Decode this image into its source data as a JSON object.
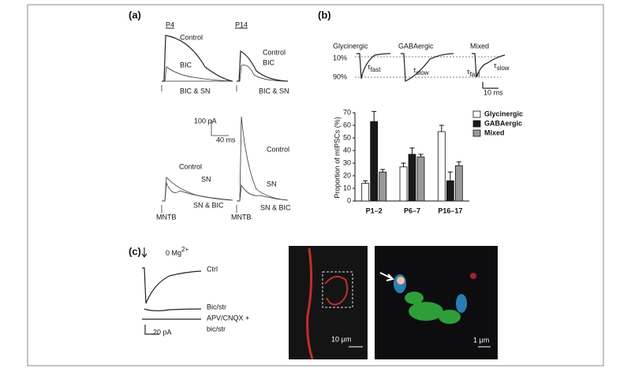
{
  "panel_a": {
    "label": "(a)",
    "p4": "P4",
    "p14": "P14",
    "top_left": [
      "Control",
      "BIC",
      "BIC & SN"
    ],
    "top_right": [
      "Control",
      "BIC",
      "BIC & SN"
    ],
    "scale_y": "100 pA",
    "scale_x": "40 ms",
    "bottom_left": [
      "Control",
      "SN",
      "SN & BIC",
      "MNTB"
    ],
    "bottom_right": [
      "Control",
      "SN",
      "SN & BIC",
      "MNTB"
    ]
  },
  "panel_b": {
    "label": "(b)",
    "types": [
      "Glycinergic",
      "GABAergic",
      "Mixed"
    ],
    "level_10": "10%",
    "level_90": "90%",
    "tau_fast": {
      "symbol": "τ",
      "subscript": "fast"
    },
    "tau_slow": {
      "symbol": "τ",
      "subscript": "slow"
    },
    "tau_fast_mixed": {
      "symbol": "τ",
      "subscript": "fast"
    },
    "tau_slow_mixed": {
      "symbol": "τ",
      "subscript": "slow"
    },
    "scale": "10 ms"
  },
  "panel_c": {
    "label": "(c)",
    "condition": {
      "base": "0 Mg",
      "sup": "2+"
    },
    "traces": [
      "Ctrl",
      "Bic/str",
      "APV/CNQX +",
      "bic/str"
    ],
    "scale": "20 pA",
    "scale_image_1": "10 μm",
    "scale_image_2": "1 μm"
  },
  "chart_data": {
    "type": "bar",
    "y_label": "Proportion of mIPSCs (%)",
    "categories": [
      "P1–2",
      "P6–7",
      "P16–17"
    ],
    "series": [
      {
        "name": "Glycinergic",
        "color": "#ffffff",
        "values": [
          14,
          27,
          55
        ],
        "errors": [
          2,
          3,
          5
        ]
      },
      {
        "name": "GABAergic",
        "color": "#1a1a1a",
        "values": [
          63,
          37,
          16
        ],
        "errors": [
          8,
          5,
          7
        ]
      },
      {
        "name": "Mixed",
        "color": "#999999",
        "values": [
          23,
          35,
          28
        ],
        "errors": [
          2,
          2,
          3
        ]
      }
    ],
    "ylim": [
      0,
      70
    ],
    "yticks": [
      0,
      10,
      20,
      30,
      40,
      50,
      60,
      70
    ],
    "legend": "top-right"
  }
}
